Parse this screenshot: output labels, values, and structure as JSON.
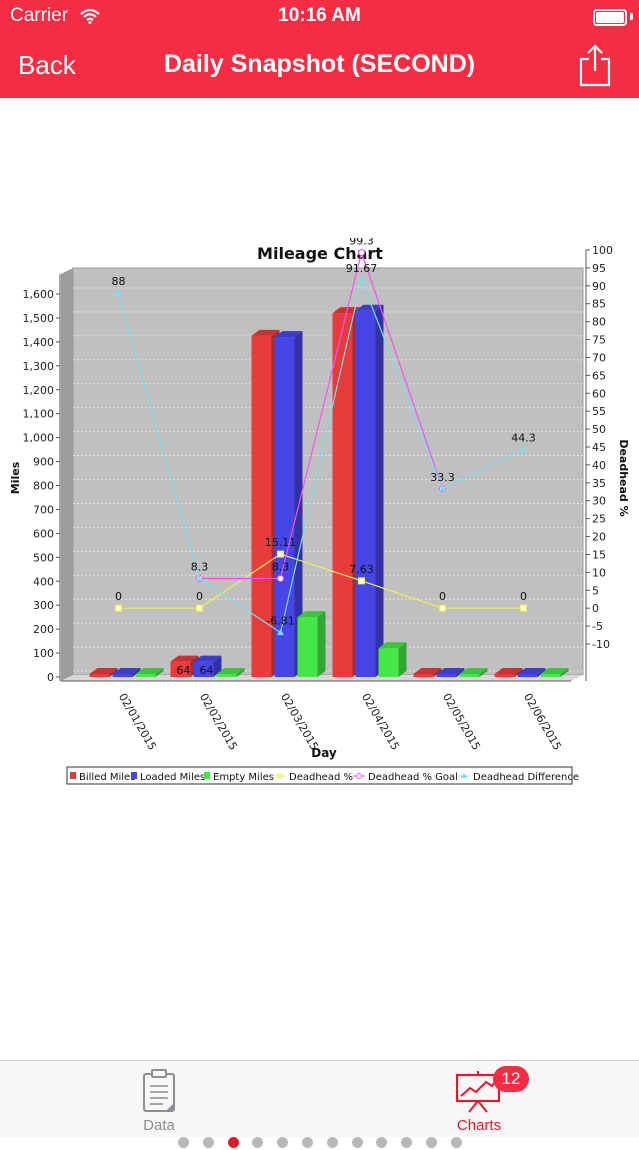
{
  "status_bar": {
    "carrier": "Carrier",
    "time": "10:16 AM"
  },
  "nav": {
    "back_label": "Back",
    "title": "Daily Snapshot (SECOND)",
    "share_icon": "share-icon"
  },
  "colors": {
    "brand": "#f42d44",
    "billed": "#e83c3c",
    "loaded": "#4646e6",
    "empty": "#46e646",
    "deadhead": "#eeee55",
    "goal": "#ee55ee",
    "difference": "#7fdcec"
  },
  "chart_data": {
    "type": "bar",
    "title": "Mileage Chart",
    "xlabel": "Day",
    "ylabel": "Miles",
    "y2label": "Deadhead %",
    "categories": [
      "02/01/2015",
      "02/02/2015",
      "02/03/2015",
      "02/04/2015",
      "02/05/2015",
      "02/06/2015"
    ],
    "ylim": [
      0,
      1600
    ],
    "y2lim": [
      -10,
      100
    ],
    "yticks": [
      "0",
      "100",
      "200",
      "300",
      "400",
      "500",
      "600",
      "700",
      "800",
      "900",
      "1,000",
      "1,100",
      "1,200",
      "1,300",
      "1,400",
      "1,500",
      "1,600"
    ],
    "y2ticks": [
      "-10",
      "-5",
      "0",
      "5",
      "10",
      "15",
      "20",
      "25",
      "30",
      "35",
      "40",
      "45",
      "50",
      "55",
      "60",
      "65",
      "70",
      "75",
      "80",
      "85",
      "90",
      "95",
      "100"
    ],
    "grid": true,
    "legend_position": "bottom",
    "series": [
      {
        "name": "Billed Miles",
        "axis": "left",
        "kind": "bar",
        "values": [
          0,
          64,
          1425,
          1520,
          0,
          0
        ]
      },
      {
        "name": "Loaded Miles",
        "axis": "left",
        "kind": "bar",
        "values": [
          0,
          64,
          1420,
          1530,
          0,
          0
        ]
      },
      {
        "name": "Empty Miles",
        "axis": "left",
        "kind": "bar",
        "values": [
          0,
          0,
          250,
          120,
          0,
          0
        ]
      },
      {
        "name": "Deadhead %",
        "axis": "right",
        "kind": "line",
        "values": [
          0,
          0,
          15.11,
          7.63,
          0,
          0
        ]
      },
      {
        "name": "Deadhead % Goal",
        "axis": "right",
        "kind": "line",
        "values": [
          null,
          8.3,
          8.3,
          99.3,
          33.3,
          null
        ]
      },
      {
        "name": "Deadhead Difference",
        "axis": "right",
        "kind": "line",
        "values": [
          88,
          8.3,
          -6.81,
          91.67,
          33.3,
          44.3
        ]
      }
    ],
    "bar_labels": [
      {
        "text": "64",
        "category": 1,
        "value": 64
      },
      {
        "text": "64",
        "category": 1,
        "value": 64
      }
    ],
    "point_labels": [
      {
        "text": "88",
        "category": 0,
        "value": 88
      },
      {
        "text": "8.3",
        "category": 1,
        "value": 8.3
      },
      {
        "text": "-6.81",
        "category": 2,
        "value": -6.81
      },
      {
        "text": "91.67",
        "category": 3,
        "value": 91.67
      },
      {
        "text": "33.3",
        "category": 4,
        "value": 33.3
      },
      {
        "text": "44.3",
        "category": 5,
        "value": 44.3
      },
      {
        "text": "8.3",
        "category": 2,
        "value": 8.3
      },
      {
        "text": "99.3",
        "category": 3,
        "value": 99.3
      },
      {
        "text": "0",
        "category": 0,
        "value": 0
      },
      {
        "text": "0",
        "category": 1,
        "value": 0
      },
      {
        "text": "15.11",
        "category": 2,
        "value": 15.11
      },
      {
        "text": "7.63",
        "category": 3,
        "value": 7.63
      },
      {
        "text": "0",
        "category": 4,
        "value": 0
      },
      {
        "text": "0",
        "category": 5,
        "value": 0
      }
    ]
  },
  "pager": {
    "count": 12,
    "active": 2
  },
  "tabs": [
    {
      "label": "Data",
      "icon": "clipboard-icon",
      "selected": false
    },
    {
      "label": "Charts",
      "icon": "chart-easel-icon",
      "selected": true,
      "badge": "12"
    }
  ]
}
